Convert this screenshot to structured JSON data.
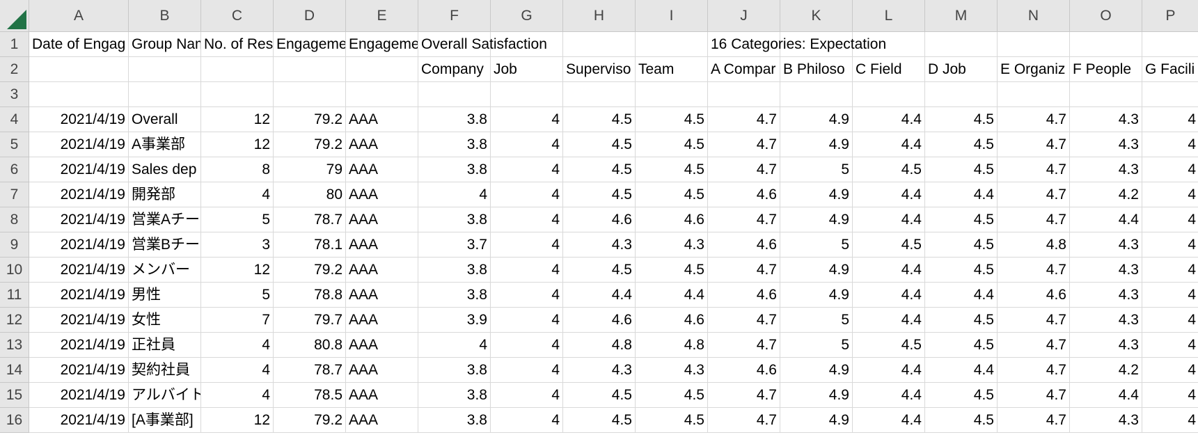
{
  "sheet": {
    "columns": [
      "A",
      "B",
      "C",
      "D",
      "E",
      "F",
      "G",
      "H",
      "I",
      "J",
      "K",
      "L",
      "M",
      "N",
      "O",
      "P"
    ],
    "row_numbers": [
      1,
      2,
      3,
      4,
      5,
      6,
      7,
      8,
      9,
      10,
      11,
      12,
      13,
      14,
      15,
      16
    ],
    "rows": [
      [
        "Date of Engag",
        "Group Nam",
        "No. of Res",
        "Engageme",
        "Engageme",
        "Overall Satisfaction",
        null,
        null,
        null,
        "16 Categories: Expectation",
        null,
        null,
        null,
        null,
        null,
        null
      ],
      [
        null,
        null,
        null,
        null,
        null,
        "Company",
        "Job",
        "Superviso",
        "Team",
        "A Compar",
        "B Philoso",
        "C Field",
        "D Job",
        "E Organiz",
        "F People",
        "G Facili"
      ],
      [
        null,
        null,
        null,
        null,
        null,
        null,
        null,
        null,
        null,
        null,
        null,
        null,
        null,
        null,
        null,
        null
      ],
      [
        "2021/4/19",
        "Overall",
        12,
        79.2,
        "AAA",
        3.8,
        4,
        4.5,
        4.5,
        4.7,
        4.9,
        4.4,
        4.5,
        4.7,
        4.3,
        4
      ],
      [
        "2021/4/19",
        "A事業部",
        12,
        79.2,
        "AAA",
        3.8,
        4,
        4.5,
        4.5,
        4.7,
        4.9,
        4.4,
        4.5,
        4.7,
        4.3,
        4
      ],
      [
        "2021/4/19",
        "Sales dep",
        8,
        79,
        "AAA",
        3.8,
        4,
        4.5,
        4.5,
        4.7,
        5,
        4.5,
        4.5,
        4.7,
        4.3,
        4
      ],
      [
        "2021/4/19",
        "開発部",
        4,
        80,
        "AAA",
        4,
        4,
        4.5,
        4.5,
        4.6,
        4.9,
        4.4,
        4.4,
        4.7,
        4.2,
        4
      ],
      [
        "2021/4/19",
        "営業Aチー",
        5,
        78.7,
        "AAA",
        3.8,
        4,
        4.6,
        4.6,
        4.7,
        4.9,
        4.4,
        4.5,
        4.7,
        4.4,
        4
      ],
      [
        "2021/4/19",
        "営業Bチー",
        3,
        78.1,
        "AAA",
        3.7,
        4,
        4.3,
        4.3,
        4.6,
        5,
        4.5,
        4.5,
        4.8,
        4.3,
        4
      ],
      [
        "2021/4/19",
        "メンバー",
        12,
        79.2,
        "AAA",
        3.8,
        4,
        4.5,
        4.5,
        4.7,
        4.9,
        4.4,
        4.5,
        4.7,
        4.3,
        4
      ],
      [
        "2021/4/19",
        "男性",
        5,
        78.8,
        "AAA",
        3.8,
        4,
        4.4,
        4.4,
        4.6,
        4.9,
        4.4,
        4.4,
        4.6,
        4.3,
        4
      ],
      [
        "2021/4/19",
        "女性",
        7,
        79.7,
        "AAA",
        3.9,
        4,
        4.6,
        4.6,
        4.7,
        5,
        4.4,
        4.5,
        4.7,
        4.3,
        4
      ],
      [
        "2021/4/19",
        "正社員",
        4,
        80.8,
        "AAA",
        4,
        4,
        4.8,
        4.8,
        4.7,
        5,
        4.5,
        4.5,
        4.7,
        4.3,
        4
      ],
      [
        "2021/4/19",
        "契約社員",
        4,
        78.7,
        "AAA",
        3.8,
        4,
        4.3,
        4.3,
        4.6,
        4.9,
        4.4,
        4.4,
        4.7,
        4.2,
        4
      ],
      [
        "2021/4/19",
        "アルバイト",
        4,
        78.5,
        "AAA",
        3.8,
        4,
        4.5,
        4.5,
        4.7,
        4.9,
        4.4,
        4.5,
        4.7,
        4.4,
        4
      ],
      [
        "2021/4/19",
        "[A事業部]",
        12,
        79.2,
        "AAA",
        3.8,
        4,
        4.5,
        4.5,
        4.7,
        4.9,
        4.4,
        4.5,
        4.7,
        4.3,
        4
      ]
    ]
  }
}
